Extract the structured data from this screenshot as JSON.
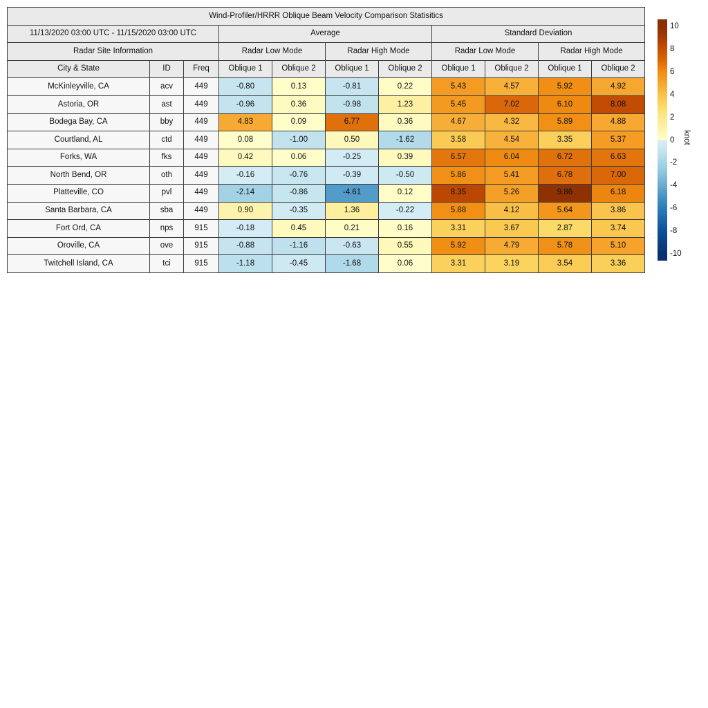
{
  "chart_data": {
    "type": "heatmap",
    "title": "Wind-Profiler/HRRR Oblique Beam Velocity Comparison Statisitics",
    "date_range": "11/13/2020 03:00 UTC - 11/15/2020 03:00 UTC",
    "site_info_label": "Radar Site Information",
    "column_groups": [
      "Average",
      "Standard Deviation"
    ],
    "mode_headers": [
      "Radar Low Mode",
      "Radar High Mode",
      "Radar Low Mode",
      "Radar High Mode"
    ],
    "site_columns": [
      "City & State",
      "ID",
      "Freq"
    ],
    "oblique_columns": [
      "Oblique 1",
      "Oblique 2",
      "Oblique 1",
      "Oblique 2",
      "Oblique 1",
      "Oblique 2",
      "Oblique 1",
      "Oblique 2"
    ],
    "rows": [
      {
        "city": "McKinleyville, CA",
        "id": "acv",
        "freq": "449",
        "values": [
          -0.8,
          0.13,
          -0.81,
          0.22,
          5.43,
          4.57,
          5.92,
          4.92
        ]
      },
      {
        "city": "Astoria, OR",
        "id": "ast",
        "freq": "449",
        "values": [
          -0.96,
          0.36,
          -0.98,
          1.23,
          5.45,
          7.02,
          6.1,
          8.08
        ]
      },
      {
        "city": "Bodega Bay, CA",
        "id": "bby",
        "freq": "449",
        "values": [
          4.83,
          0.09,
          6.77,
          0.36,
          4.67,
          4.32,
          5.89,
          4.88
        ]
      },
      {
        "city": "Courtland, AL",
        "id": "ctd",
        "freq": "449",
        "values": [
          0.08,
          -1.0,
          0.5,
          -1.62,
          3.58,
          4.54,
          3.35,
          5.37
        ]
      },
      {
        "city": "Forks, WA",
        "id": "fks",
        "freq": "449",
        "values": [
          0.42,
          0.06,
          -0.25,
          0.39,
          6.57,
          6.04,
          6.72,
          6.63
        ]
      },
      {
        "city": "North Bend, OR",
        "id": "oth",
        "freq": "449",
        "values": [
          -0.16,
          -0.76,
          -0.39,
          -0.5,
          5.86,
          5.41,
          6.78,
          7.0
        ]
      },
      {
        "city": "Platteville, CO",
        "id": "pvl",
        "freq": "449",
        "values": [
          -2.14,
          -0.86,
          -4.61,
          0.12,
          8.35,
          5.26,
          9.86,
          6.18
        ]
      },
      {
        "city": "Santa Barbara, CA",
        "id": "sba",
        "freq": "449",
        "values": [
          0.9,
          -0.35,
          1.36,
          -0.22,
          5.88,
          4.12,
          5.64,
          3.86
        ]
      },
      {
        "city": "Fort Ord, CA",
        "id": "nps",
        "freq": "915",
        "values": [
          -0.18,
          0.45,
          0.21,
          0.16,
          3.31,
          3.67,
          2.87,
          3.74
        ]
      },
      {
        "city": "Oroville, CA",
        "id": "ove",
        "freq": "915",
        "values": [
          -0.88,
          -1.16,
          -0.63,
          0.55,
          5.92,
          4.79,
          5.78,
          5.1
        ]
      },
      {
        "city": "Twitchell Island, CA",
        "id": "tci",
        "freq": "915",
        "values": [
          -1.18,
          -0.45,
          -1.68,
          0.06,
          3.31,
          3.19,
          3.54,
          3.36
        ]
      }
    ],
    "colorbar": {
      "label": "knot",
      "vmin": -10,
      "vmax": 10,
      "ticks": [
        10,
        8,
        6,
        4,
        2,
        0,
        -2,
        -4,
        -6,
        -8,
        -10
      ]
    },
    "colormap_stops": [
      [
        -10,
        "#083270"
      ],
      [
        -8,
        "#0d4f9a"
      ],
      [
        -6,
        "#2c7cbb"
      ],
      [
        -5,
        "#4393c3"
      ],
      [
        -4,
        "#68abd0"
      ],
      [
        -3,
        "#8ac1dc"
      ],
      [
        -2,
        "#a8d5e6"
      ],
      [
        -1,
        "#c2e3ee"
      ],
      [
        -0.02,
        "#d8eef6"
      ],
      [
        0.02,
        "#ffffcc"
      ],
      [
        1,
        "#fdf2a8"
      ],
      [
        2,
        "#fce98d"
      ],
      [
        3,
        "#fbd864"
      ],
      [
        4,
        "#f9c149"
      ],
      [
        5,
        "#f6a52f"
      ],
      [
        6,
        "#f08d12"
      ],
      [
        7,
        "#da670a"
      ],
      [
        8,
        "#c64e03"
      ],
      [
        9,
        "#a53b04"
      ],
      [
        10,
        "#8a3004"
      ]
    ]
  },
  "colors": {
    "background": "#ffffff",
    "header_bg": "#eaeaea",
    "site_cell_bg": "#f7f7f7",
    "grid_border": "#3d3d3d",
    "text": "#111111"
  }
}
